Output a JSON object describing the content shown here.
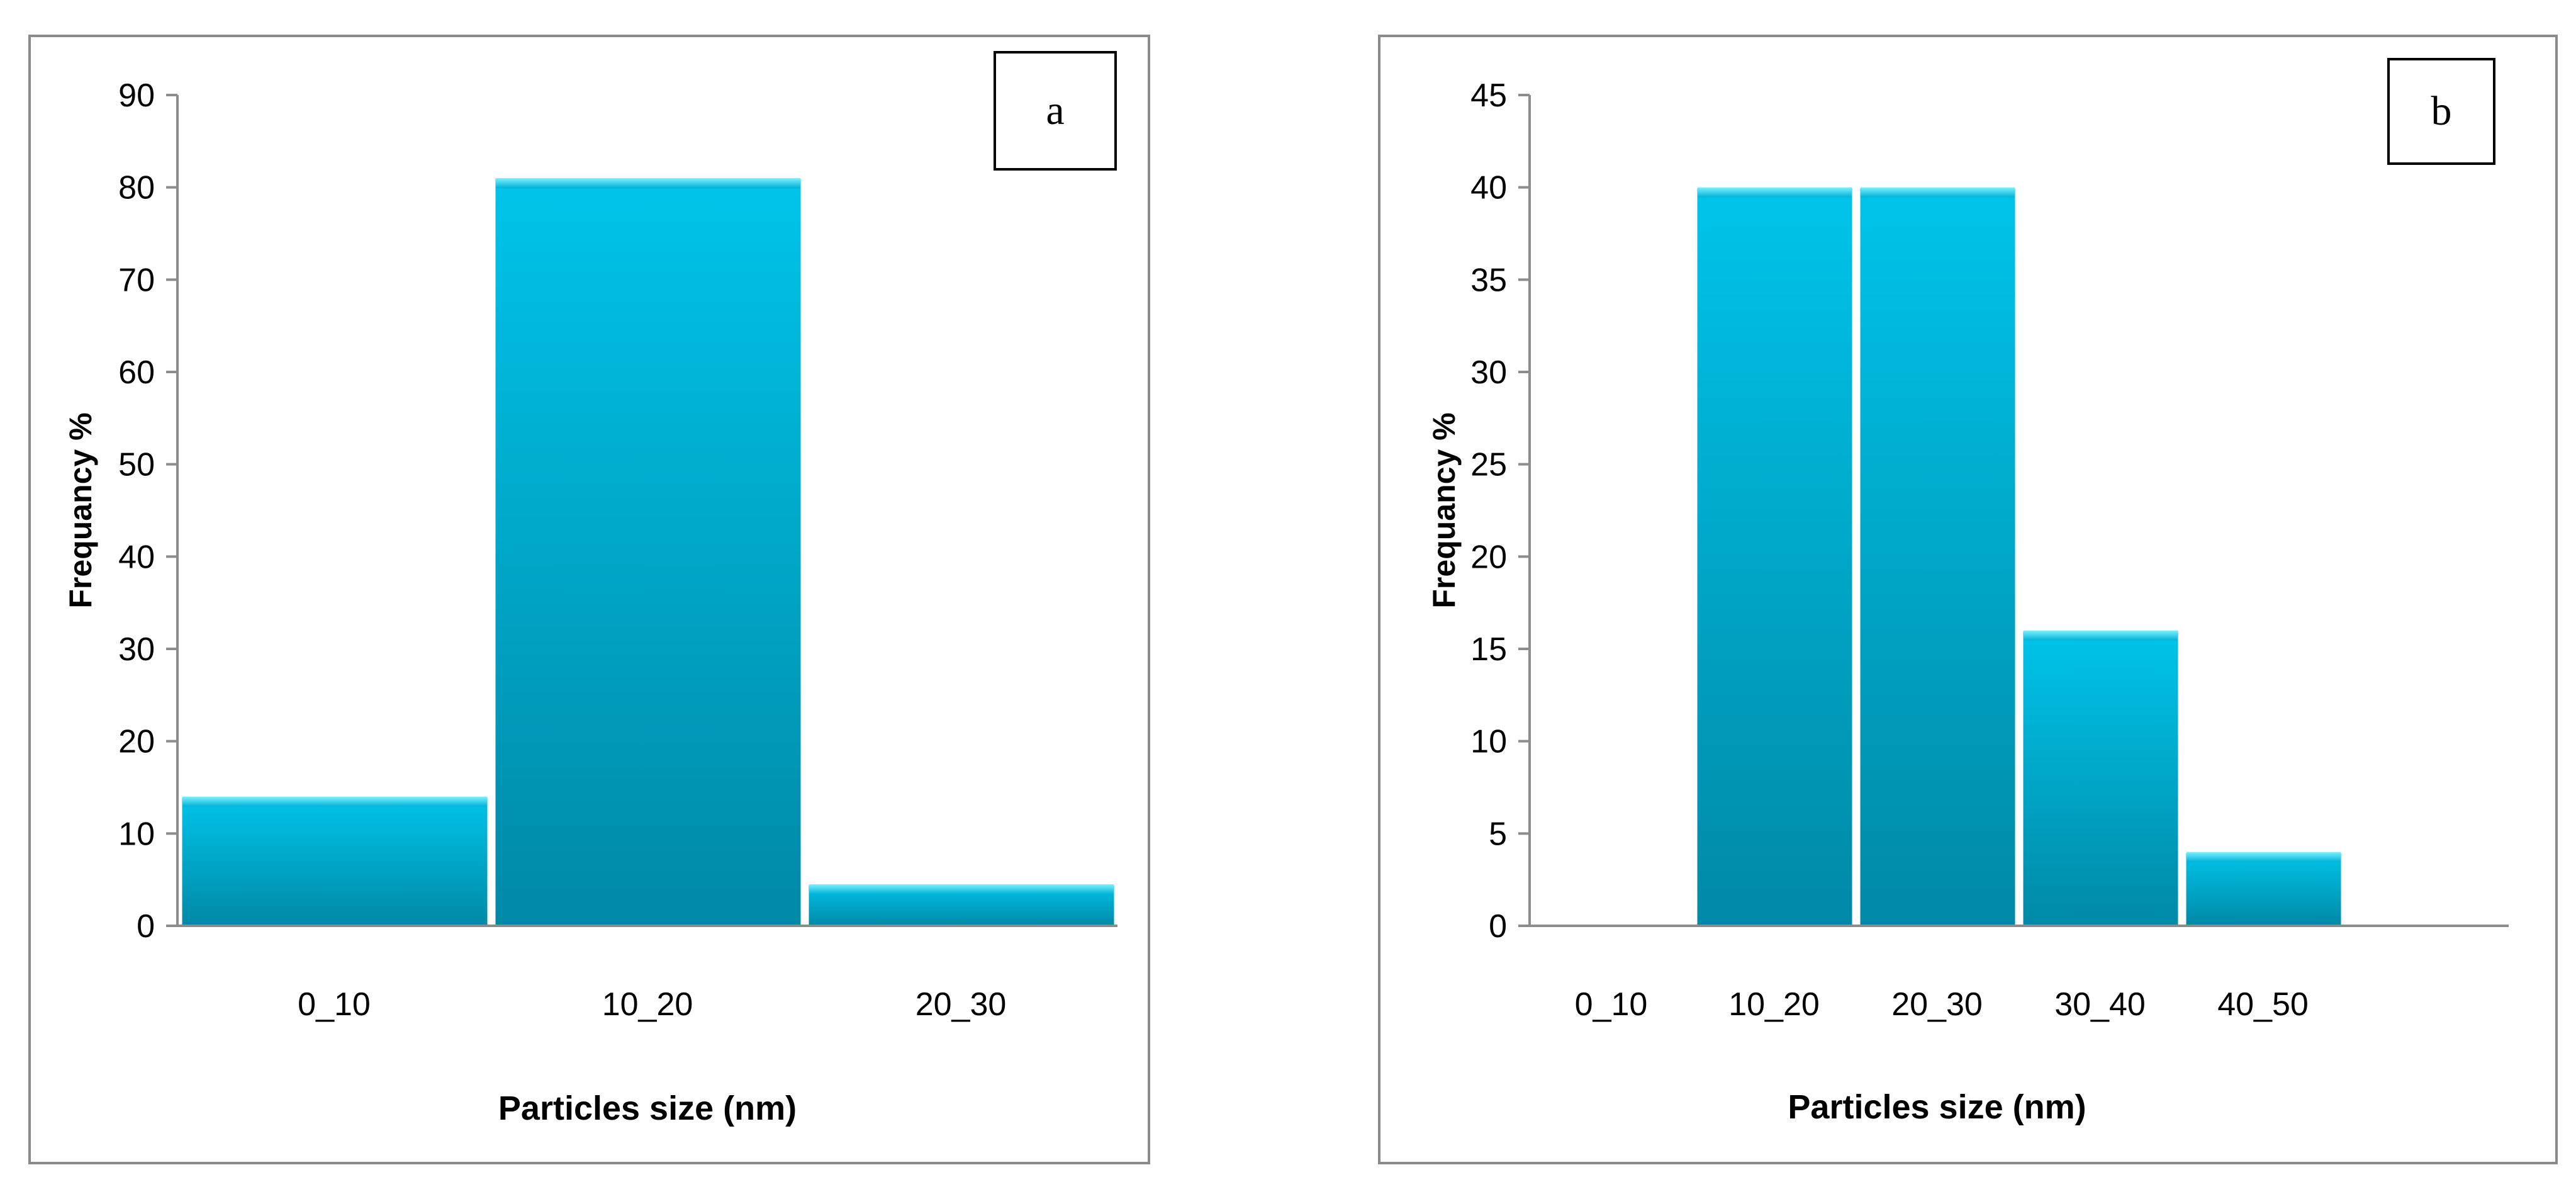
{
  "chart_data": [
    {
      "type": "bar",
      "panel_label": "a",
      "categories": [
        "0_10",
        "10_20",
        "20_30"
      ],
      "values": [
        14,
        81,
        4.5
      ],
      "xlabel": "Particles size (nm)",
      "ylabel": "Frequancy %",
      "ylim": [
        0,
        90
      ],
      "yticks": [
        "0",
        "10",
        "20",
        "30",
        "40",
        "50",
        "60",
        "70",
        "80",
        "90"
      ],
      "grid": false,
      "bar_color": "#00b2d6"
    },
    {
      "type": "bar",
      "panel_label": "b",
      "categories": [
        "0_10",
        "10_20",
        "20_30",
        "30_40",
        "40_50"
      ],
      "values": [
        0,
        40,
        40,
        16,
        4
      ],
      "xlabel": "Particles size (nm)",
      "ylabel": "Frequancy %",
      "ylim": [
        0,
        45
      ],
      "yticks": [
        "0",
        "5",
        "10",
        "15",
        "20",
        "25",
        "30",
        "35",
        "40",
        "45"
      ],
      "grid": false,
      "bar_color": "#00b2d6"
    }
  ]
}
